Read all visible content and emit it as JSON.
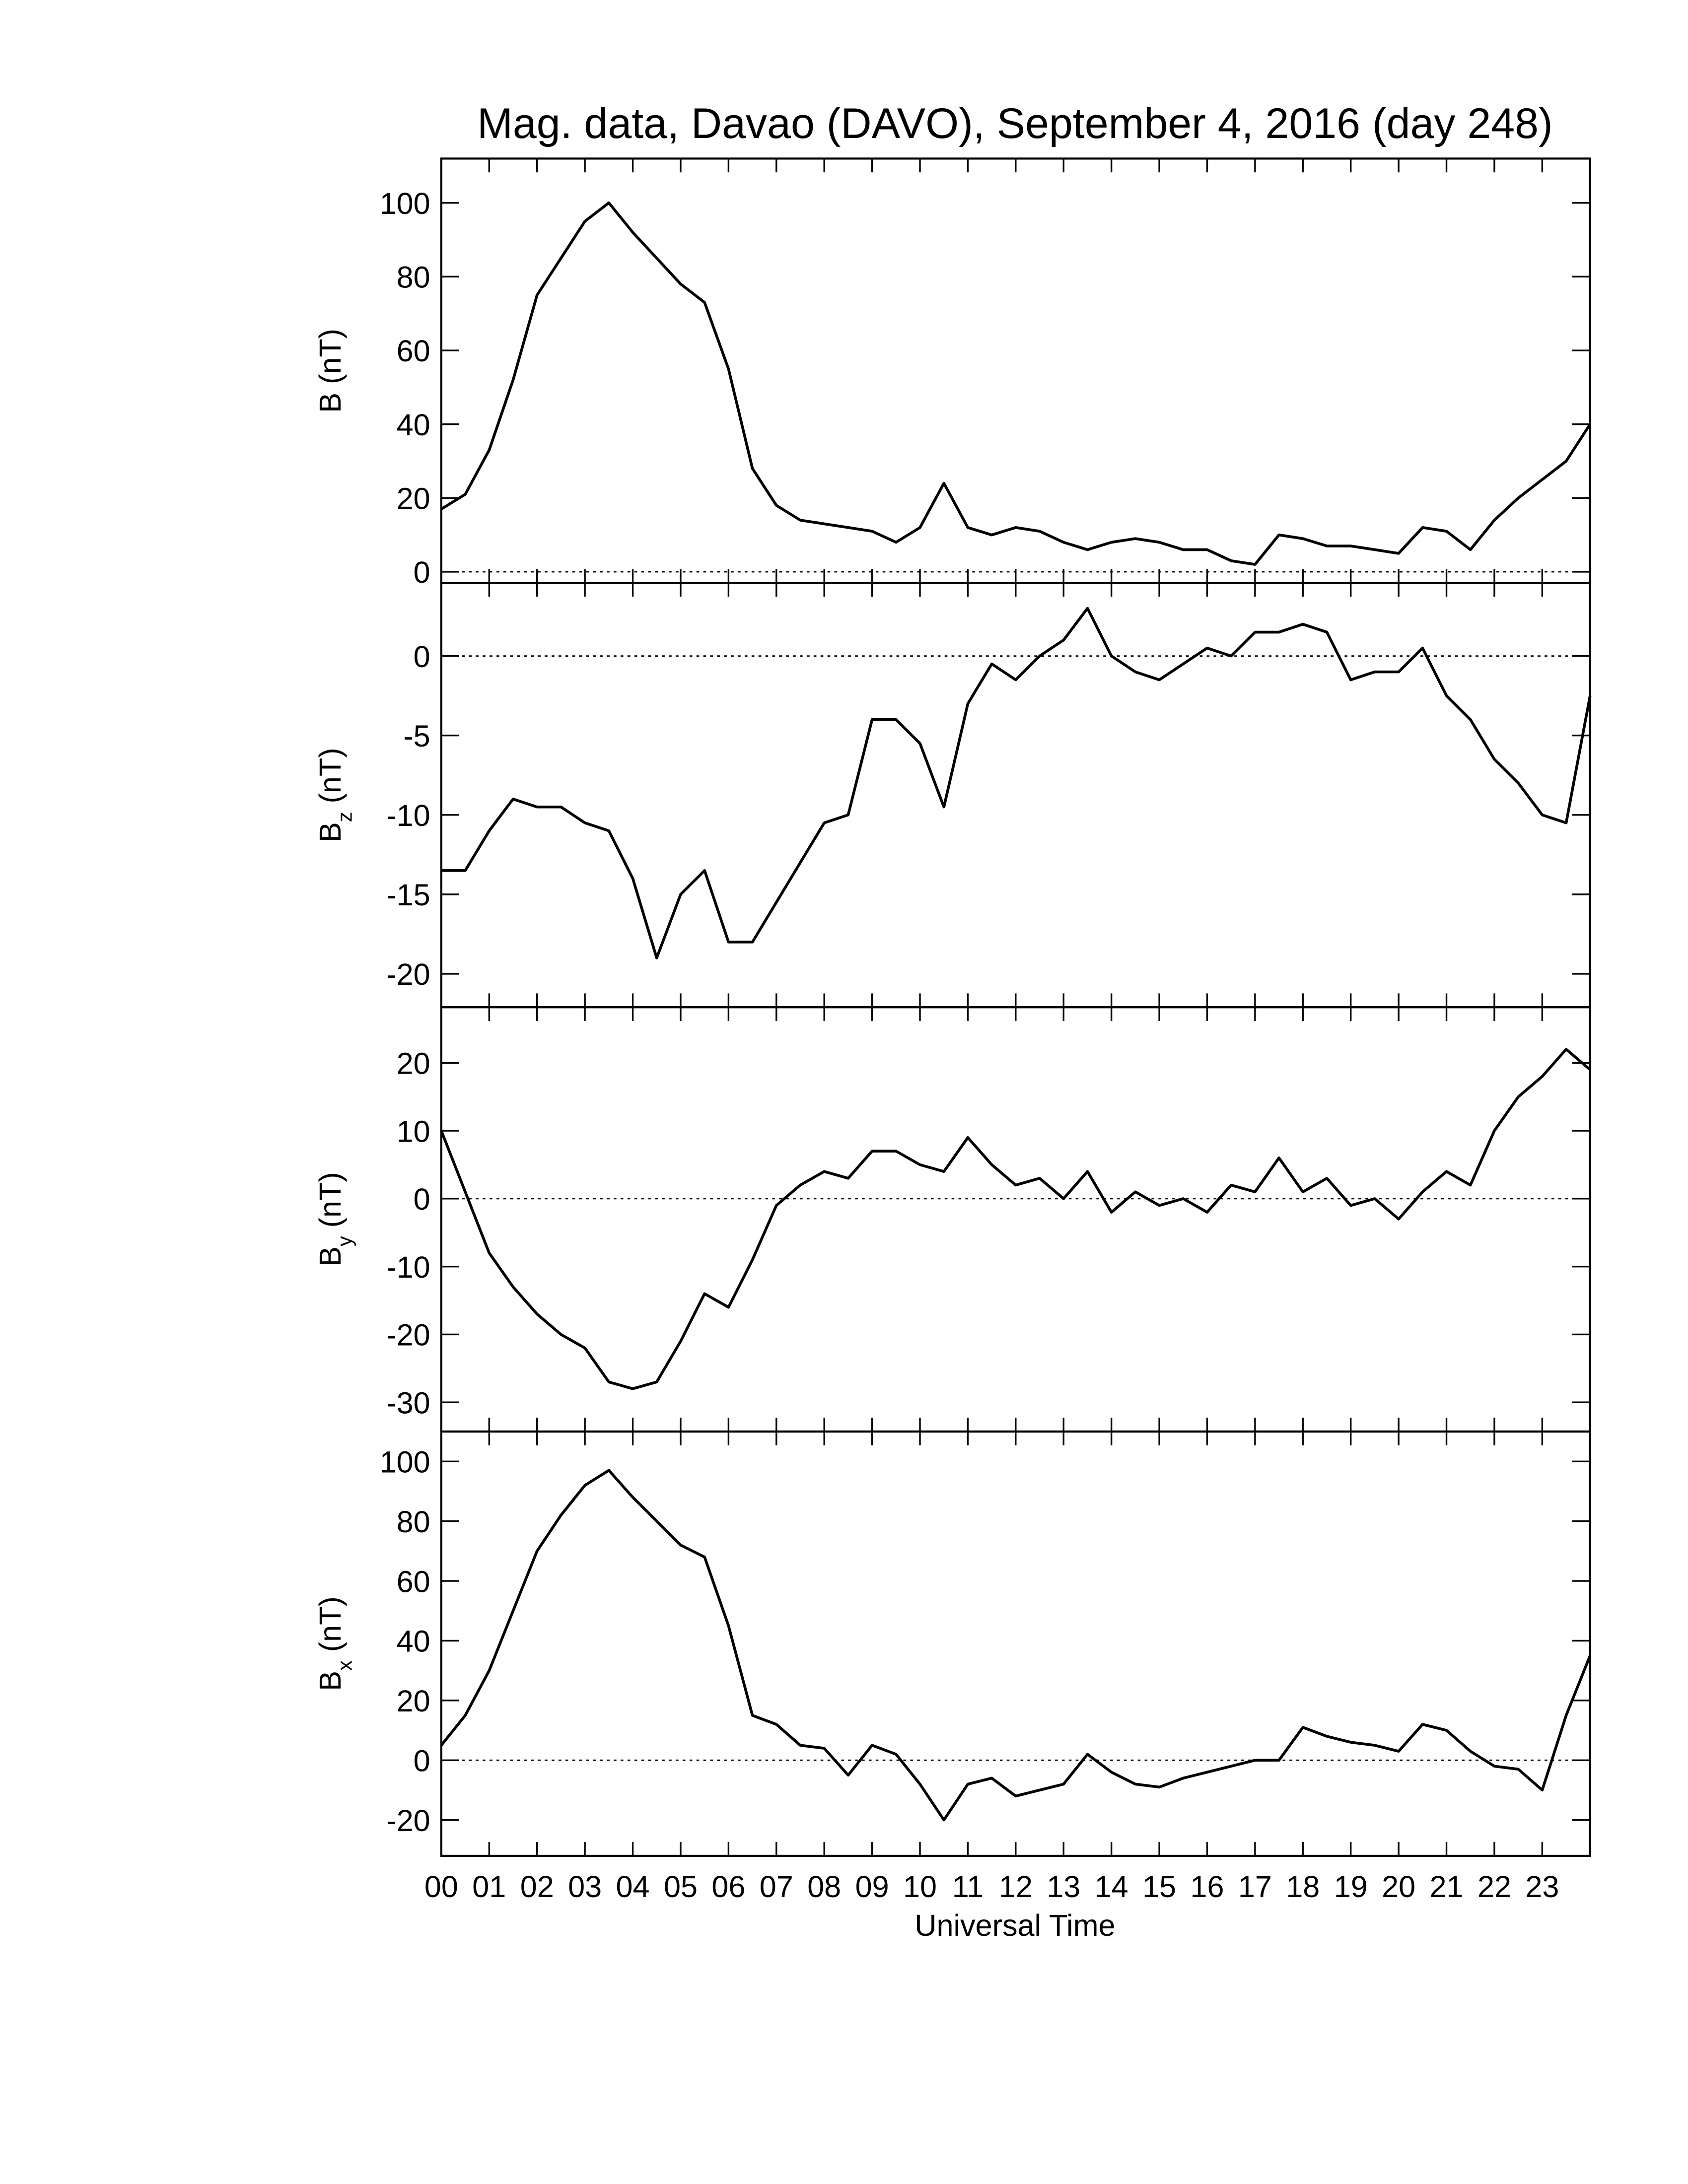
{
  "chart_data": [
    {
      "type": "line",
      "title": "Mag. data, Davao (DAVO), September 4, 2016 (day 248)",
      "ylabel": {
        "main": "B",
        "unit": "(nT)"
      },
      "color": "#000000",
      "hline": 0,
      "xlim": [
        0,
        24
      ],
      "ylim": [
        -3,
        112
      ],
      "yticks": [
        0,
        20,
        40,
        60,
        80,
        100
      ],
      "x": [
        0,
        0.5,
        1,
        1.5,
        2,
        2.5,
        3,
        3.5,
        4,
        4.5,
        5,
        5.5,
        6,
        6.5,
        7,
        7.5,
        8,
        8.5,
        9,
        9.5,
        10,
        10.5,
        11,
        11.5,
        12,
        12.5,
        13,
        13.5,
        14,
        14.5,
        15,
        15.5,
        16,
        16.5,
        17,
        17.5,
        18,
        18.5,
        19,
        19.5,
        20,
        20.5,
        21,
        21.5,
        22,
        22.5,
        23,
        23.5,
        24
      ],
      "values": [
        17,
        21,
        33,
        52,
        75,
        85,
        95,
        100,
        92,
        85,
        78,
        73,
        55,
        28,
        18,
        14,
        13,
        12,
        11,
        8,
        12,
        24,
        12,
        10,
        12,
        11,
        8,
        6,
        8,
        9,
        8,
        6,
        6,
        3,
        2,
        10,
        9,
        7,
        7,
        6,
        5,
        12,
        11,
        6,
        14,
        20,
        25,
        30,
        40
      ]
    },
    {
      "type": "line",
      "ylabel": {
        "main": "B",
        "sub": "z",
        "unit": "(nT)"
      },
      "color": "#000000",
      "hline": 0,
      "xlim": [
        0,
        24
      ],
      "ylim": [
        -22.1,
        4.6
      ],
      "yticks": [
        -20,
        -15,
        -10,
        -5,
        0
      ],
      "x": [
        0,
        0.5,
        1,
        1.5,
        2,
        2.5,
        3,
        3.5,
        4,
        4.5,
        5,
        5.5,
        6,
        6.5,
        7,
        7.5,
        8,
        8.5,
        9,
        9.5,
        10,
        10.5,
        11,
        11.5,
        12,
        12.5,
        13,
        13.5,
        14,
        14.5,
        15,
        15.5,
        16,
        16.5,
        17,
        17.5,
        18,
        18.5,
        19,
        19.5,
        20,
        20.5,
        21,
        21.5,
        22,
        22.5,
        23,
        23.5,
        24
      ],
      "values": [
        -13.5,
        -13.5,
        -11,
        -9,
        -9.5,
        -9.5,
        -10.5,
        -11,
        -14,
        -19,
        -15,
        -13.5,
        -18,
        -18,
        -15.5,
        -13,
        -10.5,
        -10,
        -4,
        -4,
        -5.5,
        -9.5,
        -3,
        -0.5,
        -1.5,
        0,
        1,
        3,
        0,
        -1,
        -1.5,
        -0.5,
        0.5,
        0,
        1.5,
        1.5,
        2,
        1.5,
        -1.5,
        -1,
        -1,
        0.5,
        -2.5,
        -4,
        -6.5,
        -8,
        -10,
        -10.5,
        -2.5
      ]
    },
    {
      "type": "line",
      "ylabel": {
        "main": "B",
        "sub": "y",
        "unit": "(nT)"
      },
      "color": "#000000",
      "hline": 0,
      "xlim": [
        0,
        24
      ],
      "ylim": [
        -34.3,
        28.2
      ],
      "yticks": [
        -30,
        -20,
        -10,
        0,
        10,
        20
      ],
      "x": [
        0,
        0.5,
        1,
        1.5,
        2,
        2.5,
        3,
        3.5,
        4,
        4.5,
        5,
        5.5,
        6,
        6.5,
        7,
        7.5,
        8,
        8.5,
        9,
        9.5,
        10,
        10.5,
        11,
        11.5,
        12,
        12.5,
        13,
        13.5,
        14,
        14.5,
        15,
        15.5,
        16,
        16.5,
        17,
        17.5,
        18,
        18.5,
        19,
        19.5,
        20,
        20.5,
        21,
        21.5,
        22,
        22.5,
        23,
        23.5,
        24
      ],
      "values": [
        10,
        1,
        -8,
        -13,
        -17,
        -20,
        -22,
        -27,
        -28,
        -27,
        -21,
        -14,
        -16,
        -9,
        -1,
        2,
        4,
        3,
        7,
        7,
        5,
        4,
        9,
        5,
        2,
        3,
        0,
        4,
        -2,
        1,
        -1,
        0,
        -2,
        2,
        1,
        6,
        1,
        3,
        -1,
        0,
        -3,
        1,
        4,
        2,
        10,
        15,
        18,
        22,
        19
      ]
    },
    {
      "type": "line",
      "ylabel": {
        "main": "B",
        "sub": "x",
        "unit": "(nT)"
      },
      "xlabel": "Universal Time",
      "color": "#000000",
      "hline": 0,
      "xlim": [
        0,
        24
      ],
      "ylim": [
        -32,
        110
      ],
      "yticks": [
        -20,
        0,
        20,
        40,
        60,
        80,
        100
      ],
      "xticks": [
        {
          "value": 0,
          "label": "00"
        },
        {
          "value": 1,
          "label": "01"
        },
        {
          "value": 2,
          "label": "02"
        },
        {
          "value": 3,
          "label": "03"
        },
        {
          "value": 4,
          "label": "04"
        },
        {
          "value": 5,
          "label": "05"
        },
        {
          "value": 6,
          "label": "06"
        },
        {
          "value": 7,
          "label": "07"
        },
        {
          "value": 8,
          "label": "08"
        },
        {
          "value": 9,
          "label": "09"
        },
        10,
        11,
        12,
        13,
        14,
        15,
        16,
        17,
        18,
        19,
        20,
        21,
        22,
        23
      ],
      "x": [
        0,
        0.5,
        1,
        1.5,
        2,
        2.5,
        3,
        3.5,
        4,
        4.5,
        5,
        5.5,
        6,
        6.5,
        7,
        7.5,
        8,
        8.5,
        9,
        9.5,
        10,
        10.5,
        11,
        11.5,
        12,
        12.5,
        13,
        13.5,
        14,
        14.5,
        15,
        15.5,
        16,
        16.5,
        17,
        17.5,
        18,
        18.5,
        19,
        19.5,
        20,
        20.5,
        21,
        21.5,
        22,
        22.5,
        23,
        23.5,
        24
      ],
      "values": [
        5,
        15,
        30,
        50,
        70,
        82,
        92,
        97,
        88,
        80,
        72,
        68,
        45,
        15,
        12,
        5,
        4,
        -5,
        5,
        2,
        -8,
        -20,
        -8,
        -6,
        -12,
        -10,
        -8,
        2,
        -4,
        -8,
        -9,
        -6,
        -4,
        -2,
        0,
        0,
        11,
        8,
        6,
        5,
        3,
        12,
        10,
        3,
        -2,
        -3,
        -10,
        15,
        35
      ]
    }
  ]
}
